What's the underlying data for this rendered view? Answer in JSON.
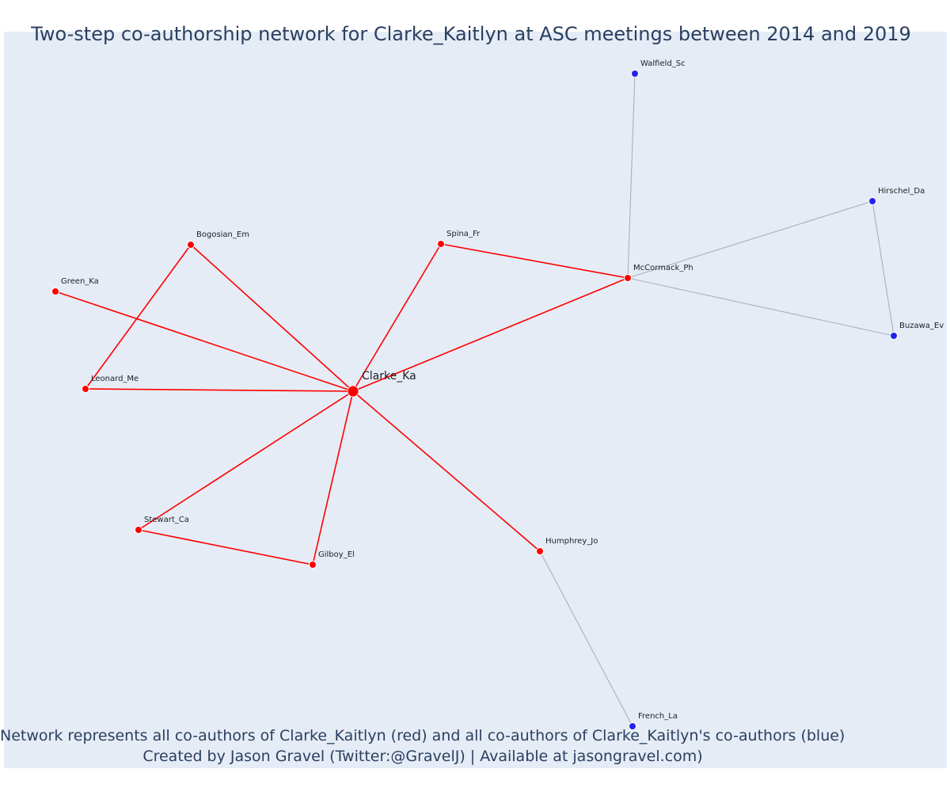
{
  "title": "Two-step co-authorship network for Clarke_Kaitlyn at ASC meetings between 2014 and 2019",
  "caption_line1": "Network represents all co-authors of Clarke_Kaitlyn (red) and all co-authors of Clarke_Kaitlyn's co-authors (blue)",
  "caption_line2": "Created by Jason Gravel (Twitter:@GravelJ) | Available at jasongravel.com)",
  "colors": {
    "background": "#e5ecf6",
    "first_step": "#ff0000",
    "second_step": "#2222ee",
    "second_step_edge": "#aab0bd",
    "text": "#2a3f5f"
  },
  "network": {
    "center": "Clarke_Ka",
    "nodes": [
      {
        "id": "Clarke_Ka",
        "group": "center"
      },
      {
        "id": "Bogosian_Em",
        "group": "coauthor"
      },
      {
        "id": "Spina_Fr",
        "group": "coauthor"
      },
      {
        "id": "Green_Ka",
        "group": "coauthor"
      },
      {
        "id": "McCormack_Ph",
        "group": "coauthor"
      },
      {
        "id": "Leonard_Me",
        "group": "coauthor"
      },
      {
        "id": "Stewart_Ca",
        "group": "coauthor"
      },
      {
        "id": "Gilboy_El",
        "group": "coauthor"
      },
      {
        "id": "Humphrey_Jo",
        "group": "coauthor"
      },
      {
        "id": "Walfield_Sc",
        "group": "second"
      },
      {
        "id": "Hirschel_Da",
        "group": "second"
      },
      {
        "id": "Buzawa_Ev",
        "group": "second"
      },
      {
        "id": "French_La",
        "group": "second"
      }
    ],
    "edges": [
      {
        "source": "Clarke_Ka",
        "target": "Bogosian_Em",
        "type": "first"
      },
      {
        "source": "Clarke_Ka",
        "target": "Spina_Fr",
        "type": "first"
      },
      {
        "source": "Clarke_Ka",
        "target": "Green_Ka",
        "type": "first"
      },
      {
        "source": "Clarke_Ka",
        "target": "McCormack_Ph",
        "type": "first"
      },
      {
        "source": "Clarke_Ka",
        "target": "Leonard_Me",
        "type": "first"
      },
      {
        "source": "Clarke_Ka",
        "target": "Stewart_Ca",
        "type": "first"
      },
      {
        "source": "Clarke_Ka",
        "target": "Gilboy_El",
        "type": "first"
      },
      {
        "source": "Clarke_Ka",
        "target": "Humphrey_Jo",
        "type": "first"
      },
      {
        "source": "Bogosian_Em",
        "target": "Leonard_Me",
        "type": "first"
      },
      {
        "source": "Spina_Fr",
        "target": "McCormack_Ph",
        "type": "first"
      },
      {
        "source": "Stewart_Ca",
        "target": "Gilboy_El",
        "type": "first"
      },
      {
        "source": "McCormack_Ph",
        "target": "Walfield_Sc",
        "type": "second"
      },
      {
        "source": "McCormack_Ph",
        "target": "Hirschel_Da",
        "type": "second"
      },
      {
        "source": "McCormack_Ph",
        "target": "Buzawa_Ev",
        "type": "second"
      },
      {
        "source": "Hirschel_Da",
        "target": "Buzawa_Ev",
        "type": "second"
      },
      {
        "source": "Humphrey_Jo",
        "target": "French_La",
        "type": "second"
      }
    ]
  }
}
